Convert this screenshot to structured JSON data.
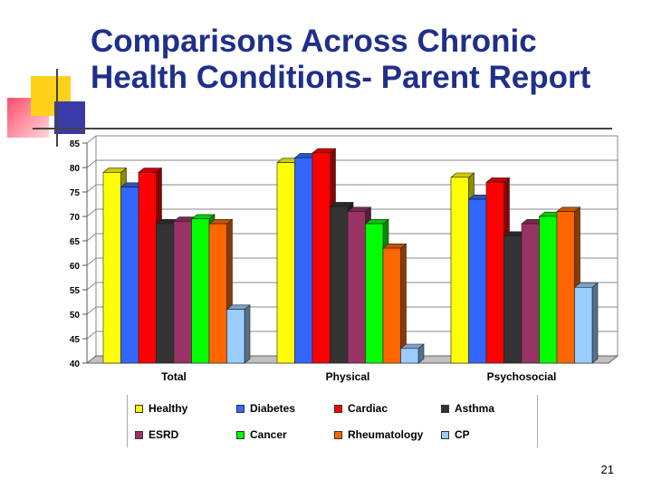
{
  "slide": {
    "title_line1": "Comparisons Across Chronic",
    "title_line2": "Health Conditions- Parent Report",
    "page_number": "21"
  },
  "chart_data": {
    "type": "bar",
    "categories": [
      "Total",
      "Physical",
      "Psychosocial"
    ],
    "ylim": [
      40,
      85
    ],
    "yticks": [
      "40",
      "45",
      "50",
      "55",
      "60",
      "65",
      "70",
      "75",
      "80",
      "85"
    ],
    "series": [
      {
        "name": "Healthy",
        "color": "#ffff00",
        "values": [
          79,
          81,
          78
        ]
      },
      {
        "name": "Diabetes",
        "color": "#3366ff",
        "values": [
          76,
          82,
          73.5
        ]
      },
      {
        "name": "Cardiac",
        "color": "#ff0000",
        "values": [
          79,
          83,
          77
        ]
      },
      {
        "name": "Asthma",
        "color": "#333333",
        "values": [
          68.5,
          72,
          66
        ]
      },
      {
        "name": "ESRD",
        "color": "#993366",
        "values": [
          69,
          71,
          68.5
        ]
      },
      {
        "name": "Cancer",
        "color": "#00ff00",
        "values": [
          69.5,
          68.5,
          70
        ]
      },
      {
        "name": "Rheumatology",
        "color": "#ff6600",
        "values": [
          68.5,
          63.5,
          71
        ]
      },
      {
        "name": "CP",
        "color": "#99ccff",
        "values": [
          51,
          43,
          55.5
        ]
      }
    ],
    "legend_position": "bottom",
    "grid": true
  }
}
